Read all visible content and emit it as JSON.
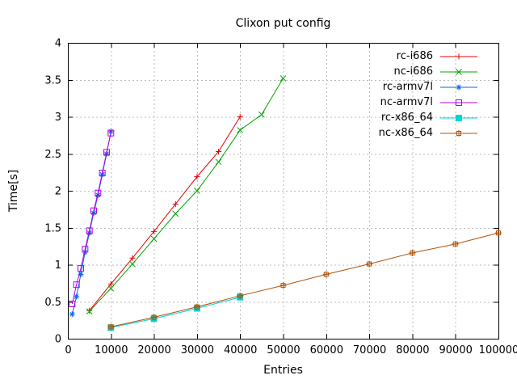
{
  "chart_data": {
    "type": "line",
    "title": "Clixon put config",
    "xlabel": "Entries",
    "ylabel": "Time[s]",
    "xlim": [
      0,
      100000
    ],
    "ylim": [
      0,
      4
    ],
    "x_ticks": [
      0,
      10000,
      20000,
      30000,
      40000,
      50000,
      60000,
      70000,
      80000,
      90000,
      100000
    ],
    "y_ticks": [
      0,
      0.5,
      1,
      1.5,
      2,
      2.5,
      3,
      3.5,
      4
    ],
    "grid": true,
    "legend_position": "top-right-inside",
    "background_color": "#ffffff",
    "grid_color": "#bbbbbb",
    "axis_color": "#000000",
    "series": [
      {
        "name": "rc-i686",
        "color": "#e60000",
        "marker": "plus",
        "x": [
          5000,
          10000,
          15000,
          20000,
          25000,
          30000,
          35000,
          40000
        ],
        "y": [
          0.38,
          0.74,
          1.09,
          1.45,
          1.82,
          2.19,
          2.53,
          3.0
        ]
      },
      {
        "name": "nc-i686",
        "color": "#00a400",
        "marker": "cross",
        "x": [
          5000,
          10000,
          15000,
          20000,
          25000,
          30000,
          35000,
          40000,
          45000,
          50000
        ],
        "y": [
          0.37,
          0.68,
          1.01,
          1.35,
          1.69,
          2.0,
          2.39,
          2.82,
          3.03,
          3.52
        ]
      },
      {
        "name": "rc-armv7l",
        "color": "#0a64e8",
        "marker": "asterisk",
        "x": [
          1000,
          2000,
          3000,
          4000,
          5000,
          6000,
          7000,
          8000,
          9000,
          10000
        ],
        "y": [
          0.33,
          0.57,
          0.87,
          1.17,
          1.43,
          1.7,
          1.94,
          2.22,
          2.5,
          2.8
        ]
      },
      {
        "name": "nc-armv7l",
        "color": "#b400f0",
        "marker": "open-square",
        "x": [
          1000,
          2000,
          3000,
          4000,
          5000,
          6000,
          7000,
          8000,
          9000,
          10000
        ],
        "y": [
          0.47,
          0.73,
          0.95,
          1.21,
          1.46,
          1.73,
          1.97,
          2.24,
          2.52,
          2.78
        ]
      },
      {
        "name": "rc-x86_64",
        "color": "#00d4d4",
        "marker": "filled-square",
        "x": [
          10000,
          20000,
          30000,
          40000
        ],
        "y": [
          0.15,
          0.27,
          0.41,
          0.56
        ]
      },
      {
        "name": "nc-x86_64",
        "color": "#b0520a",
        "marker": "boxed-plus",
        "x": [
          10000,
          20000,
          30000,
          40000,
          50000,
          60000,
          70000,
          80000,
          90000,
          100000
        ],
        "y": [
          0.16,
          0.29,
          0.43,
          0.58,
          0.72,
          0.87,
          1.01,
          1.16,
          1.28,
          1.43
        ]
      }
    ]
  }
}
